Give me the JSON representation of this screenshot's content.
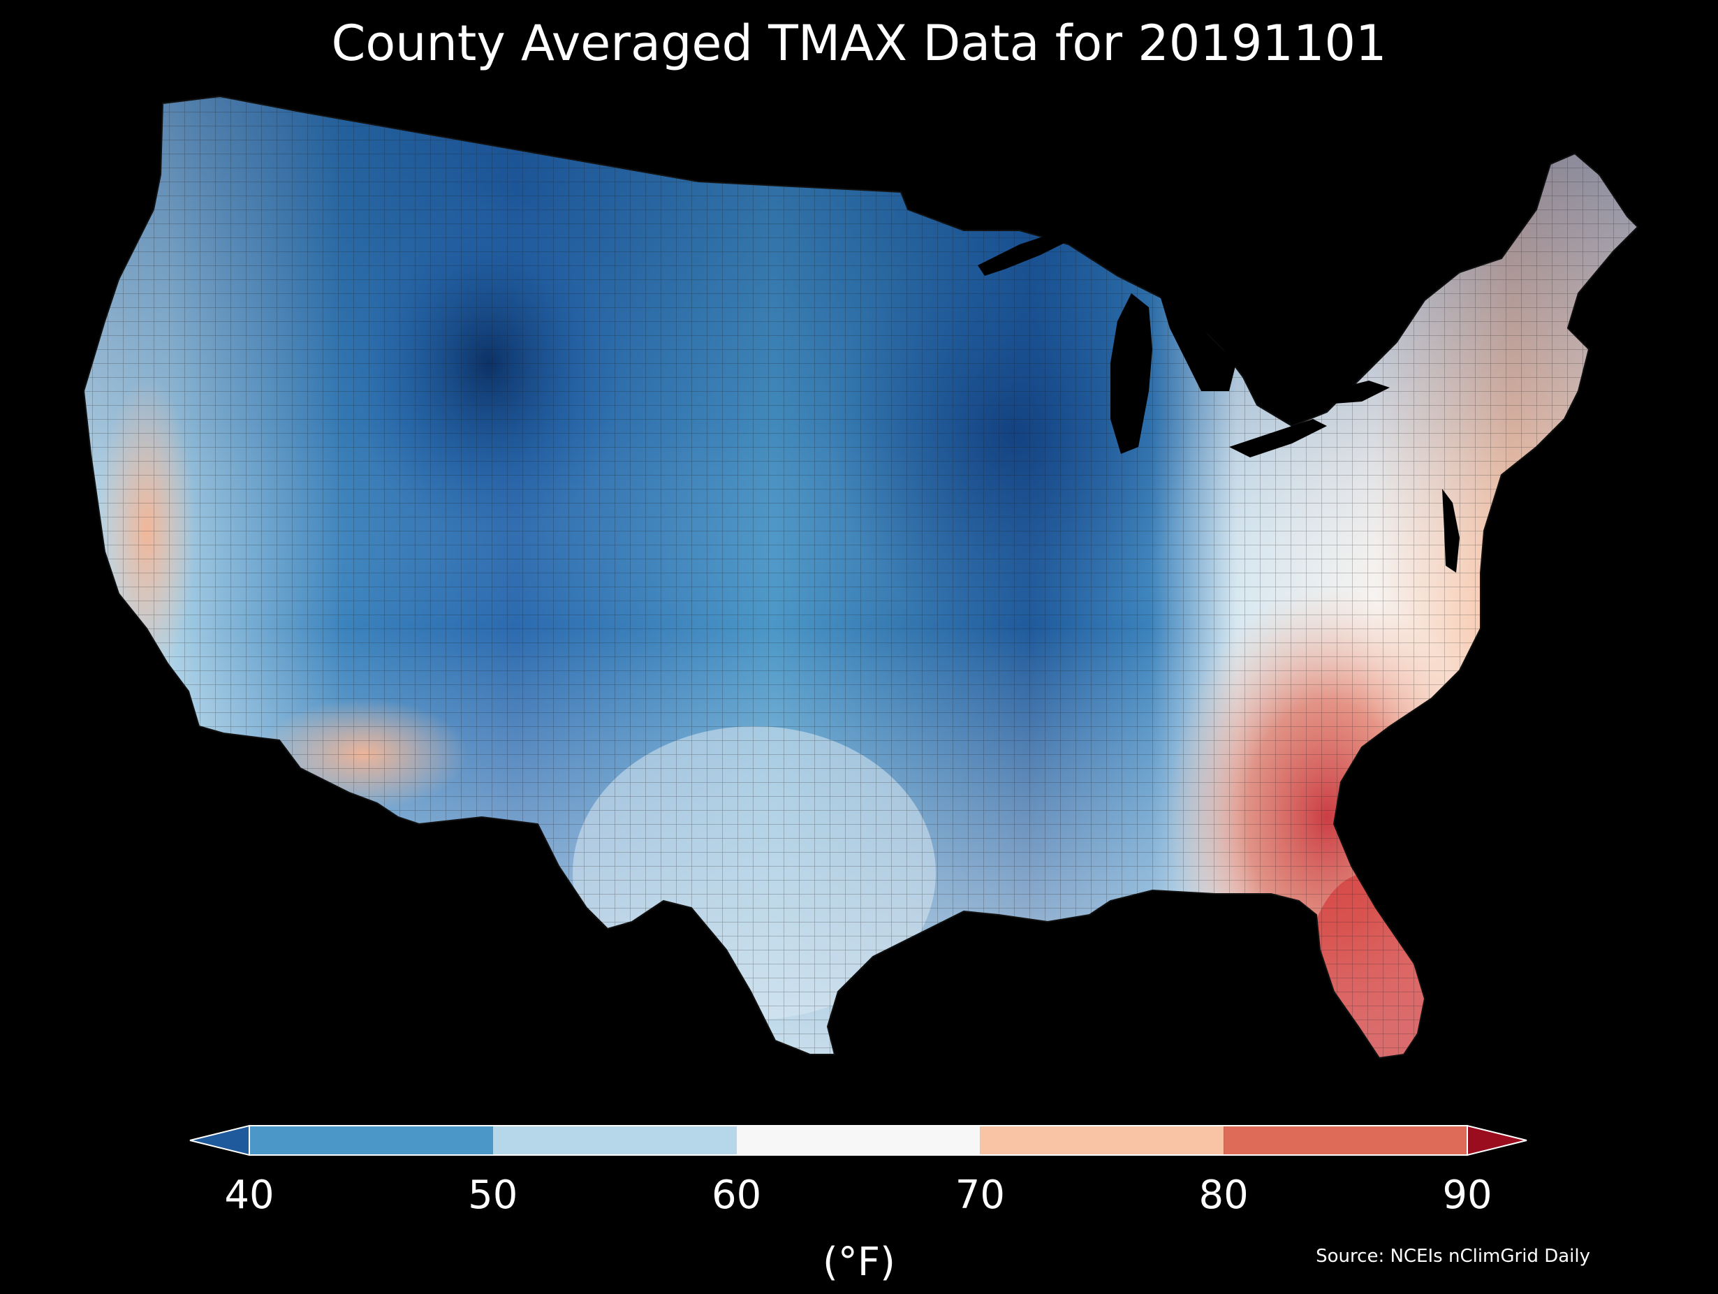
{
  "map": {
    "title": "County Averaged TMAX Data for 20191101",
    "source": "Source: NCEIs nClimGrid Daily",
    "region": "Contiguous United States (county level)",
    "variable": "TMAX",
    "date": "20191101",
    "colors": {
      "background": "#000000",
      "county_border": "#1a1a1a",
      "under": "#1f5a9c",
      "over": "#990d1f"
    }
  },
  "legend": {
    "unit": "(°F)",
    "ticks": [
      "40",
      "50",
      "60",
      "70",
      "80",
      "90"
    ],
    "bins": [
      {
        "min": 40,
        "max": 50,
        "color": "#4b97c7"
      },
      {
        "min": 50,
        "max": 60,
        "color": "#b6d7ea"
      },
      {
        "min": 60,
        "max": 70,
        "color": "#f7f7f7"
      },
      {
        "min": 70,
        "max": 80,
        "color": "#f9c3a5"
      },
      {
        "min": 80,
        "max": 90,
        "color": "#de6b57"
      }
    ],
    "extend": "both"
  }
}
